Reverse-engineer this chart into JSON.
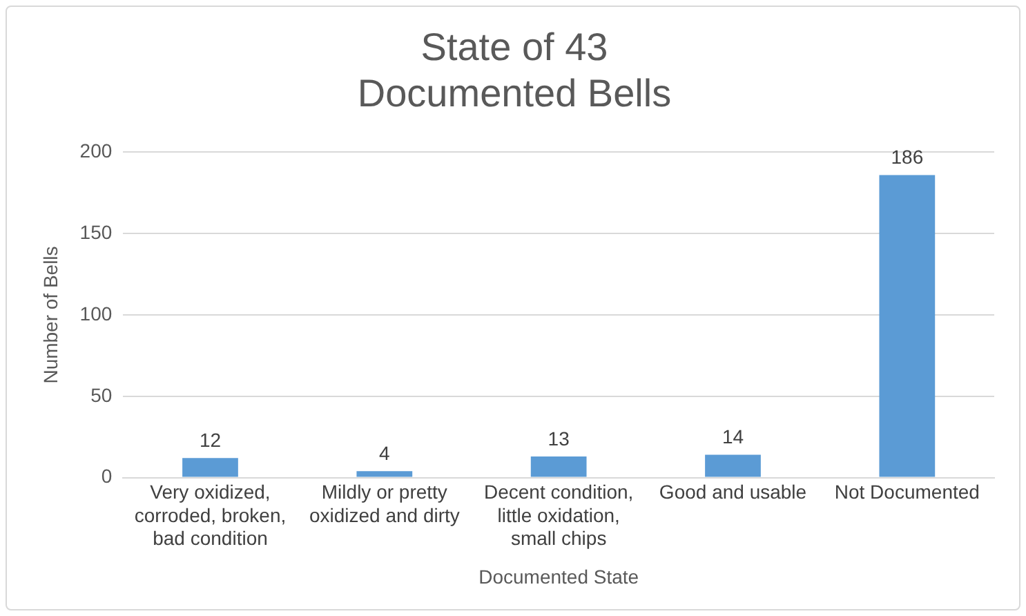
{
  "chart_data": {
    "type": "bar",
    "title": "State of 43 Documented Bells",
    "categories": [
      "Very oxidized, corroded, broken, bad condition",
      "Mildly or pretty oxidized and dirty",
      "Decent condition, little oxidation, small chips",
      "Good and usable",
      "Not Documented"
    ],
    "values": [
      12,
      4,
      13,
      14,
      186
    ],
    "color": "#5b9bd5",
    "xlabel": "Documented State",
    "ylabel": "Number of Bells",
    "ylim": [
      0,
      200
    ],
    "yticks": [
      0,
      50,
      100,
      150,
      200
    ],
    "grid": "y",
    "legend": false,
    "data_labels": true
  }
}
